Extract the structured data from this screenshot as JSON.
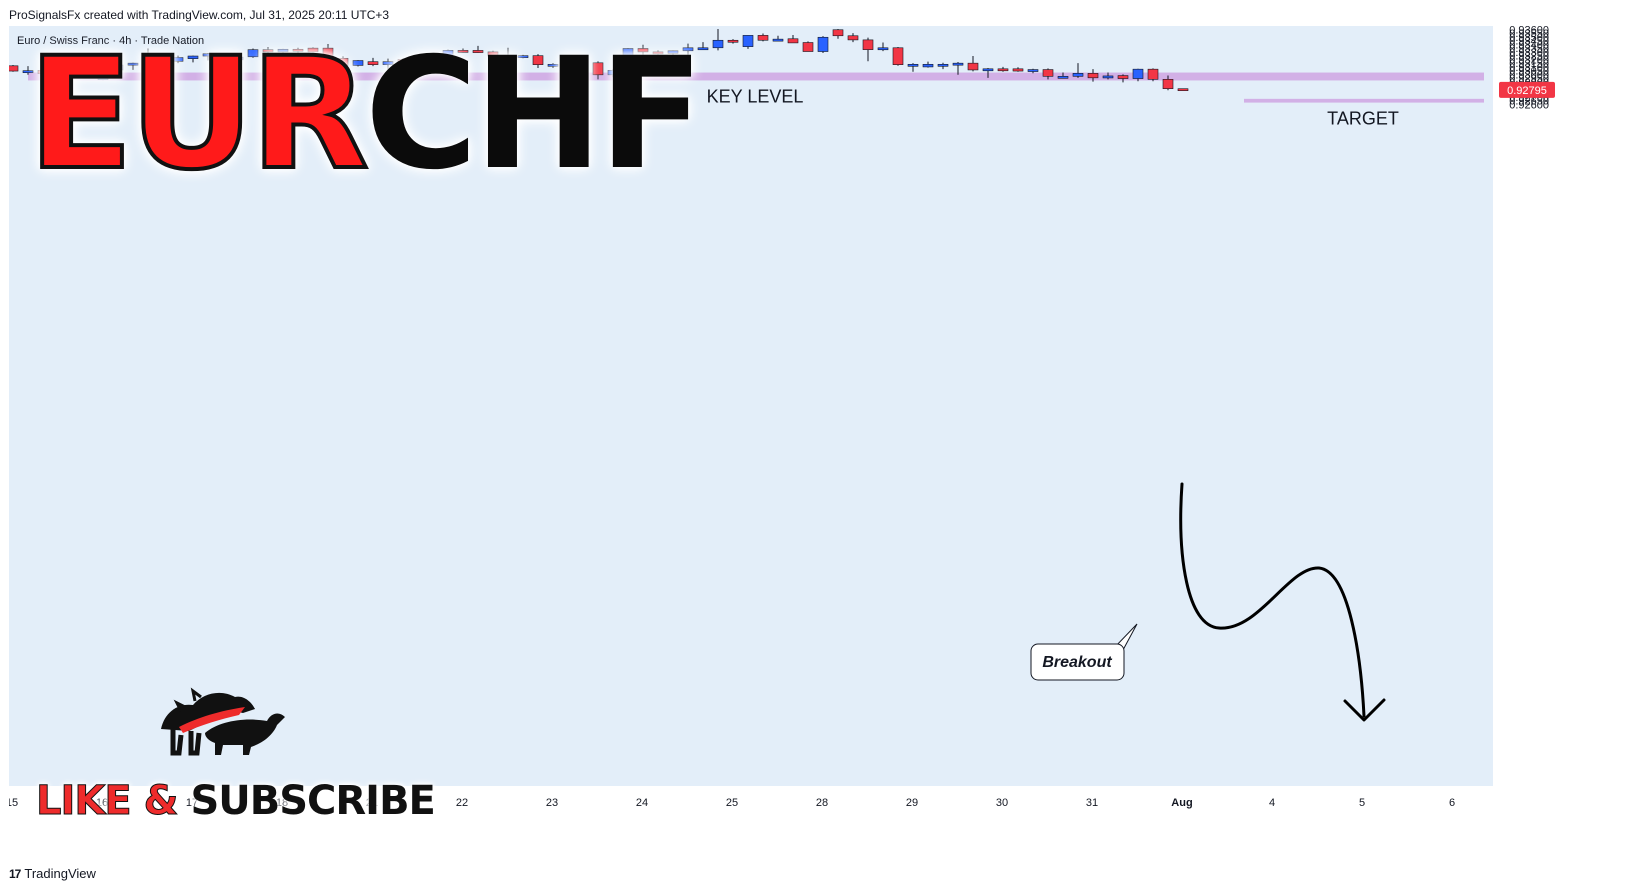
{
  "header": {
    "text": "ProSignalsFx created with TradingView.com, Jul 31, 2025 20:11 UTC+3"
  },
  "footer": {
    "brand": "TradingView"
  },
  "overlay": {
    "title_red": "EUR",
    "title_black": "CHF",
    "subscribe_red": "LIKE & ",
    "subscribe_black": "SUBSCRIBE"
  },
  "chart_data": {
    "type": "candlestick",
    "symbol_label": "Euro / Swiss Franc · 4h · Trade Nation",
    "ylim": [
      0.9258,
      0.93605
    ],
    "y_ticks": [
      "0.93600",
      "0.93550",
      "0.93500",
      "0.93450",
      "0.93400",
      "0.93350",
      "0.93300",
      "0.93250",
      "0.93200",
      "0.93150",
      "0.93100",
      "0.93050",
      "0.93000",
      "0.92950",
      "0.92900",
      "0.92850",
      "0.92800",
      "0.92750",
      "0.92700",
      "0.92650",
      "0.92600"
    ],
    "x_ticks": [
      "15",
      "16",
      "17",
      "18",
      "21",
      "22",
      "23",
      "24",
      "25",
      "28",
      "29",
      "30",
      "31",
      "Aug",
      "4",
      "5",
      "6"
    ],
    "last_price": "0.92795",
    "colors": {
      "up": "#2962ff",
      "down": "#f23645",
      "zone": "#cfa9e3",
      "price_tag": "#f23645",
      "pane": "#e3eef9"
    },
    "candles": [
      {
        "o": 0.93115,
        "h": 0.93125,
        "l": 0.93035,
        "c": 0.93045
      },
      {
        "o": 0.9304,
        "h": 0.9311,
        "l": 0.92995,
        "c": 0.9305
      },
      {
        "o": 0.93055,
        "h": 0.931,
        "l": 0.9295,
        "c": 0.9301
      },
      {
        "o": 0.9301,
        "h": 0.9306,
        "l": 0.92955,
        "c": 0.9299
      },
      {
        "o": 0.9299,
        "h": 0.9312,
        "l": 0.9294,
        "c": 0.92985
      },
      {
        "o": 0.92985,
        "h": 0.9304,
        "l": 0.92965,
        "c": 0.93
      },
      {
        "o": 0.9293,
        "h": 0.9307,
        "l": 0.92925,
        "c": 0.9306
      },
      {
        "o": 0.9306,
        "h": 0.9315,
        "l": 0.9305,
        "c": 0.93125
      },
      {
        "o": 0.93125,
        "h": 0.93155,
        "l": 0.9306,
        "c": 0.9315
      },
      {
        "o": 0.9315,
        "h": 0.93345,
        "l": 0.9309,
        "c": 0.93235
      },
      {
        "o": 0.9323,
        "h": 0.93285,
        "l": 0.93115,
        "c": 0.93175
      },
      {
        "o": 0.93175,
        "h": 0.9325,
        "l": 0.9315,
        "c": 0.93225
      },
      {
        "o": 0.9321,
        "h": 0.9325,
        "l": 0.9316,
        "c": 0.93245
      },
      {
        "o": 0.93245,
        "h": 0.93285,
        "l": 0.93185,
        "c": 0.93275
      },
      {
        "o": 0.93275,
        "h": 0.93285,
        "l": 0.9316,
        "c": 0.93195
      },
      {
        "o": 0.93195,
        "h": 0.93245,
        "l": 0.9315,
        "c": 0.9323
      },
      {
        "o": 0.93235,
        "h": 0.93345,
        "l": 0.9322,
        "c": 0.9333
      },
      {
        "o": 0.9333,
        "h": 0.93365,
        "l": 0.9324,
        "c": 0.933
      },
      {
        "o": 0.933,
        "h": 0.9334,
        "l": 0.93265,
        "c": 0.93335
      },
      {
        "o": 0.93335,
        "h": 0.93355,
        "l": 0.93285,
        "c": 0.9331
      },
      {
        "o": 0.9335,
        "h": 0.9336,
        "l": 0.9329,
        "c": 0.933
      },
      {
        "o": 0.9335,
        "h": 0.93405,
        "l": 0.93195,
        "c": 0.93215
      },
      {
        "o": 0.93215,
        "h": 0.9324,
        "l": 0.93115,
        "c": 0.9312
      },
      {
        "o": 0.9312,
        "h": 0.9319,
        "l": 0.93105,
        "c": 0.93185
      },
      {
        "o": 0.9317,
        "h": 0.9322,
        "l": 0.9311,
        "c": 0.9313
      },
      {
        "o": 0.9313,
        "h": 0.9321,
        "l": 0.93055,
        "c": 0.9317
      },
      {
        "o": 0.932,
        "h": 0.93215,
        "l": 0.9315,
        "c": 0.93175
      },
      {
        "o": 0.932,
        "h": 0.9322,
        "l": 0.9316,
        "c": 0.9317
      },
      {
        "o": 0.93175,
        "h": 0.9327,
        "l": 0.93165,
        "c": 0.9324
      },
      {
        "o": 0.9324,
        "h": 0.9333,
        "l": 0.93225,
        "c": 0.9332
      },
      {
        "o": 0.9332,
        "h": 0.93345,
        "l": 0.9329,
        "c": 0.93305
      },
      {
        "o": 0.9332,
        "h": 0.9338,
        "l": 0.93285,
        "c": 0.9329
      },
      {
        "o": 0.933,
        "h": 0.93315,
        "l": 0.9323,
        "c": 0.93245
      },
      {
        "o": 0.93245,
        "h": 0.93355,
        "l": 0.93155,
        "c": 0.9324
      },
      {
        "o": 0.9324,
        "h": 0.9326,
        "l": 0.93215,
        "c": 0.9325
      },
      {
        "o": 0.9325,
        "h": 0.9327,
        "l": 0.93085,
        "c": 0.9313
      },
      {
        "o": 0.9313,
        "h": 0.9315,
        "l": 0.93085,
        "c": 0.93135
      },
      {
        "o": 0.93135,
        "h": 0.9318,
        "l": 0.93085,
        "c": 0.93165
      },
      {
        "o": 0.93175,
        "h": 0.9319,
        "l": 0.9314,
        "c": 0.93155
      },
      {
        "o": 0.93155,
        "h": 0.93175,
        "l": 0.92935,
        "c": 0.92995
      },
      {
        "o": 0.92995,
        "h": 0.9307,
        "l": 0.92965,
        "c": 0.93055
      },
      {
        "o": 0.93055,
        "h": 0.9335,
        "l": 0.93045,
        "c": 0.93345
      },
      {
        "o": 0.93345,
        "h": 0.93395,
        "l": 0.93225,
        "c": 0.933
      },
      {
        "o": 0.933,
        "h": 0.9332,
        "l": 0.9323,
        "c": 0.93285
      },
      {
        "o": 0.9328,
        "h": 0.9332,
        "l": 0.93235,
        "c": 0.93315
      },
      {
        "o": 0.93315,
        "h": 0.9341,
        "l": 0.9326,
        "c": 0.93355
      },
      {
        "o": 0.9335,
        "h": 0.9343,
        "l": 0.9333,
        "c": 0.93355
      },
      {
        "o": 0.93355,
        "h": 0.93605,
        "l": 0.9332,
        "c": 0.93455
      },
      {
        "o": 0.93455,
        "h": 0.9347,
        "l": 0.9341,
        "c": 0.93435
      },
      {
        "o": 0.9337,
        "h": 0.9352,
        "l": 0.9334,
        "c": 0.9352
      },
      {
        "o": 0.9352,
        "h": 0.93545,
        "l": 0.9344,
        "c": 0.93455
      },
      {
        "o": 0.93455,
        "h": 0.93515,
        "l": 0.93445,
        "c": 0.9347
      },
      {
        "o": 0.93475,
        "h": 0.93525,
        "l": 0.93425,
        "c": 0.9342
      },
      {
        "o": 0.93425,
        "h": 0.9344,
        "l": 0.93305,
        "c": 0.93305
      },
      {
        "o": 0.93305,
        "h": 0.9351,
        "l": 0.93285,
        "c": 0.93495
      },
      {
        "o": 0.93595,
        "h": 0.93605,
        "l": 0.93475,
        "c": 0.93515
      },
      {
        "o": 0.93515,
        "h": 0.9355,
        "l": 0.9343,
        "c": 0.9346
      },
      {
        "o": 0.9346,
        "h": 0.9349,
        "l": 0.93175,
        "c": 0.9333
      },
      {
        "o": 0.9333,
        "h": 0.93425,
        "l": 0.9331,
        "c": 0.93355
      },
      {
        "o": 0.93355,
        "h": 0.93365,
        "l": 0.93115,
        "c": 0.9313
      },
      {
        "o": 0.9313,
        "h": 0.9315,
        "l": 0.93035,
        "c": 0.93135
      },
      {
        "o": 0.931,
        "h": 0.9317,
        "l": 0.9309,
        "c": 0.93135
      },
      {
        "o": 0.9313,
        "h": 0.93155,
        "l": 0.9307,
        "c": 0.93135
      },
      {
        "o": 0.93135,
        "h": 0.93165,
        "l": 0.92995,
        "c": 0.9315
      },
      {
        "o": 0.9315,
        "h": 0.93245,
        "l": 0.9304,
        "c": 0.9306
      },
      {
        "o": 0.9306,
        "h": 0.93085,
        "l": 0.92955,
        "c": 0.93075
      },
      {
        "o": 0.93075,
        "h": 0.931,
        "l": 0.93035,
        "c": 0.9307
      },
      {
        "o": 0.93075,
        "h": 0.93095,
        "l": 0.93035,
        "c": 0.93045
      },
      {
        "o": 0.93045,
        "h": 0.93075,
        "l": 0.93015,
        "c": 0.93065
      },
      {
        "o": 0.93065,
        "h": 0.9308,
        "l": 0.92935,
        "c": 0.92975
      },
      {
        "o": 0.92975,
        "h": 0.93025,
        "l": 0.9295,
        "c": 0.92975
      },
      {
        "o": 0.92975,
        "h": 0.9315,
        "l": 0.92955,
        "c": 0.93015
      },
      {
        "o": 0.93015,
        "h": 0.9307,
        "l": 0.92905,
        "c": 0.92955
      },
      {
        "o": 0.92965,
        "h": 0.93025,
        "l": 0.92935,
        "c": 0.9298
      },
      {
        "o": 0.92985,
        "h": 0.93,
        "l": 0.92895,
        "c": 0.92945
      },
      {
        "o": 0.92945,
        "h": 0.93075,
        "l": 0.9291,
        "c": 0.9307
      },
      {
        "o": 0.9307,
        "h": 0.9308,
        "l": 0.9291,
        "c": 0.92935
      },
      {
        "o": 0.92935,
        "h": 0.92985,
        "l": 0.9279,
        "c": 0.9281
      },
      {
        "o": 0.9281,
        "h": 0.9281,
        "l": 0.9279,
        "c": 0.92795
      }
    ],
    "zones": [
      {
        "name": "key-level",
        "y0": 0.9292,
        "y1": 0.93025,
        "label": "KEY LEVEL"
      },
      {
        "name": "target",
        "y0": 0.92625,
        "y1": 0.92675,
        "label": "TARGET"
      }
    ],
    "callout": "Breakout"
  }
}
